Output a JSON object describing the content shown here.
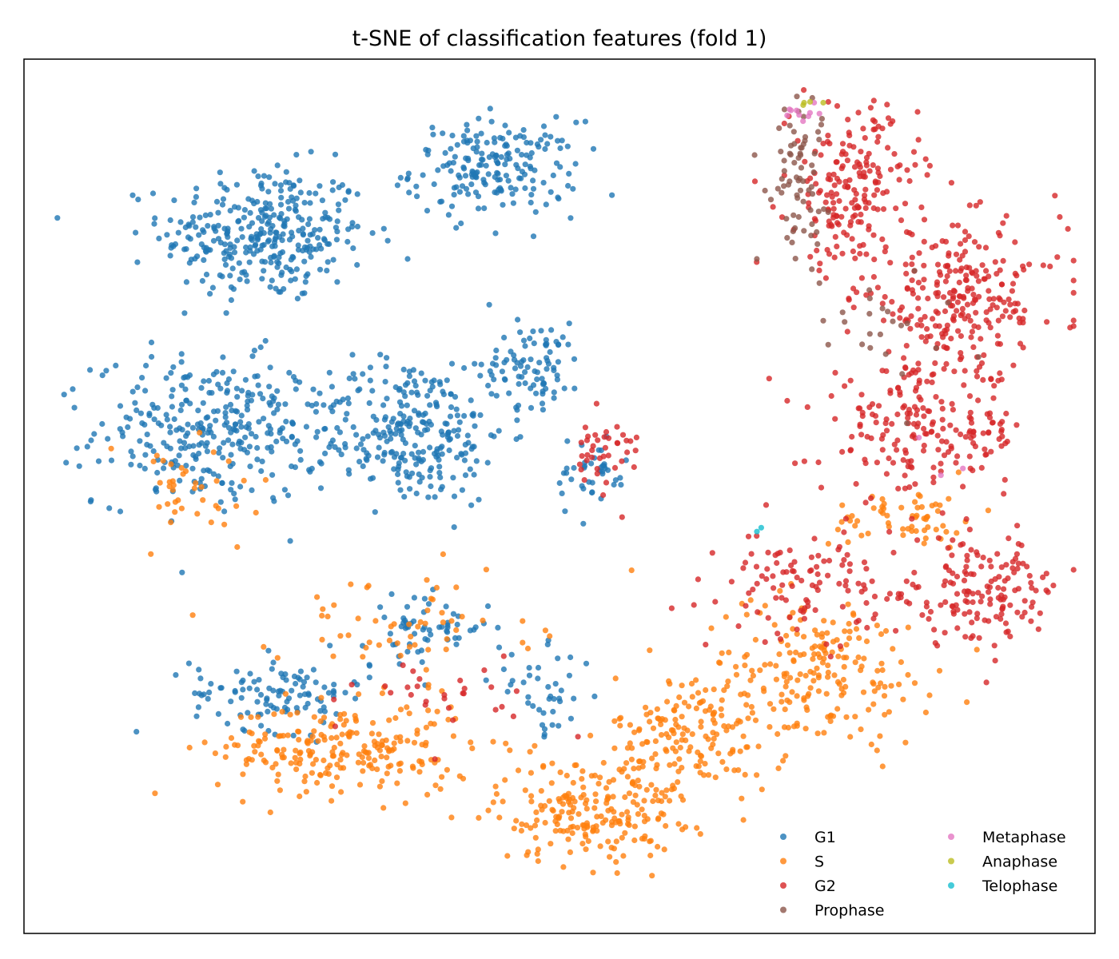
{
  "chart_data": {
    "type": "scatter",
    "title": "t-SNE of classification features (fold 1)",
    "xlabel": "",
    "ylabel": "",
    "axes_ticks": "none",
    "xlim": [
      -100,
      100
    ],
    "ylim": [
      -100,
      100
    ],
    "grid": false,
    "legend": {
      "placement": "lower-right",
      "columns": 2
    },
    "series": [
      {
        "name": "G1",
        "color": "#1f77b4",
        "clusters": [
          {
            "center": [
              -55,
              60
            ],
            "spread": [
              16,
              13
            ],
            "count": 330
          },
          {
            "center": [
              -12,
              75
            ],
            "spread": [
              13,
              9
            ],
            "count": 190
          },
          {
            "center": [
              -65,
              15
            ],
            "spread": [
              18,
              14
            ],
            "count": 310
          },
          {
            "center": [
              -28,
              15
            ],
            "spread": [
              15,
              14
            ],
            "count": 270
          },
          {
            "center": [
              -5,
              30
            ],
            "spread": [
              8,
              8
            ],
            "count": 90
          },
          {
            "center": [
              -52,
              -45
            ],
            "spread": [
              14,
              7
            ],
            "count": 110
          },
          {
            "center": [
              -25,
              -30
            ],
            "spread": [
              10,
              6
            ],
            "count": 60
          },
          {
            "center": [
              -3,
              -45
            ],
            "spread": [
              8,
              8
            ],
            "count": 40
          },
          {
            "center": [
              6,
              5
            ],
            "spread": [
              6,
              8
            ],
            "count": 40
          }
        ]
      },
      {
        "name": "S",
        "color": "#ff7f0e",
        "clusters": [
          {
            "center": [
              -40,
              -58
            ],
            "spread": [
              20,
              9
            ],
            "count": 230
          },
          {
            "center": [
              5,
              -72
            ],
            "spread": [
              14,
              10
            ],
            "count": 200
          },
          {
            "center": [
              25,
              -55
            ],
            "spread": [
              12,
              12
            ],
            "count": 170
          },
          {
            "center": [
              48,
              -40
            ],
            "spread": [
              18,
              14
            ],
            "count": 200
          },
          {
            "center": [
              65,
              -5
            ],
            "spread": [
              12,
              6
            ],
            "count": 60
          },
          {
            "center": [
              -30,
              -30
            ],
            "spread": [
              20,
              10
            ],
            "count": 60
          },
          {
            "center": [
              -70,
              0
            ],
            "spread": [
              15,
              12
            ],
            "count": 40
          }
        ]
      },
      {
        "name": "G2",
        "color": "#d62728",
        "clusters": [
          {
            "center": [
              55,
              70
            ],
            "spread": [
              10,
              16
            ],
            "count": 200
          },
          {
            "center": [
              75,
              45
            ],
            "spread": [
              16,
              14
            ],
            "count": 250
          },
          {
            "center": [
              68,
              15
            ],
            "spread": [
              16,
              12
            ],
            "count": 200
          },
          {
            "center": [
              78,
              -22
            ],
            "spread": [
              14,
              10
            ],
            "count": 160
          },
          {
            "center": [
              45,
              -20
            ],
            "spread": [
              12,
              10
            ],
            "count": 100
          },
          {
            "center": [
              8,
              10
            ],
            "spread": [
              6,
              7
            ],
            "count": 40
          },
          {
            "center": [
              -20,
              -45
            ],
            "spread": [
              15,
              8
            ],
            "count": 30
          }
        ]
      },
      {
        "name": "Prophase",
        "color": "#8c564b",
        "clusters": [
          {
            "center": [
              44,
              75
            ],
            "spread": [
              5,
              14
            ],
            "count": 70
          },
          {
            "center": [
              60,
              40
            ],
            "spread": [
              12,
              12
            ],
            "count": 25
          }
        ]
      },
      {
        "name": "Metaphase",
        "color": "#e377c2",
        "clusters": [
          {
            "center": [
              45,
              88
            ],
            "spread": [
              3,
              2
            ],
            "count": 10
          },
          {
            "center": [
              72,
              10
            ],
            "spread": [
              10,
              10
            ],
            "count": 3
          }
        ]
      },
      {
        "name": "Anaphase",
        "color": "#bcbd22",
        "clusters": [
          {
            "center": [
              47,
              90
            ],
            "spread": [
              2,
              1
            ],
            "count": 4
          }
        ]
      },
      {
        "name": "Telophase",
        "color": "#17becf",
        "clusters": [
          {
            "center": [
              37,
              -8
            ],
            "spread": [
              1,
              1
            ],
            "count": 2
          }
        ]
      }
    ]
  }
}
